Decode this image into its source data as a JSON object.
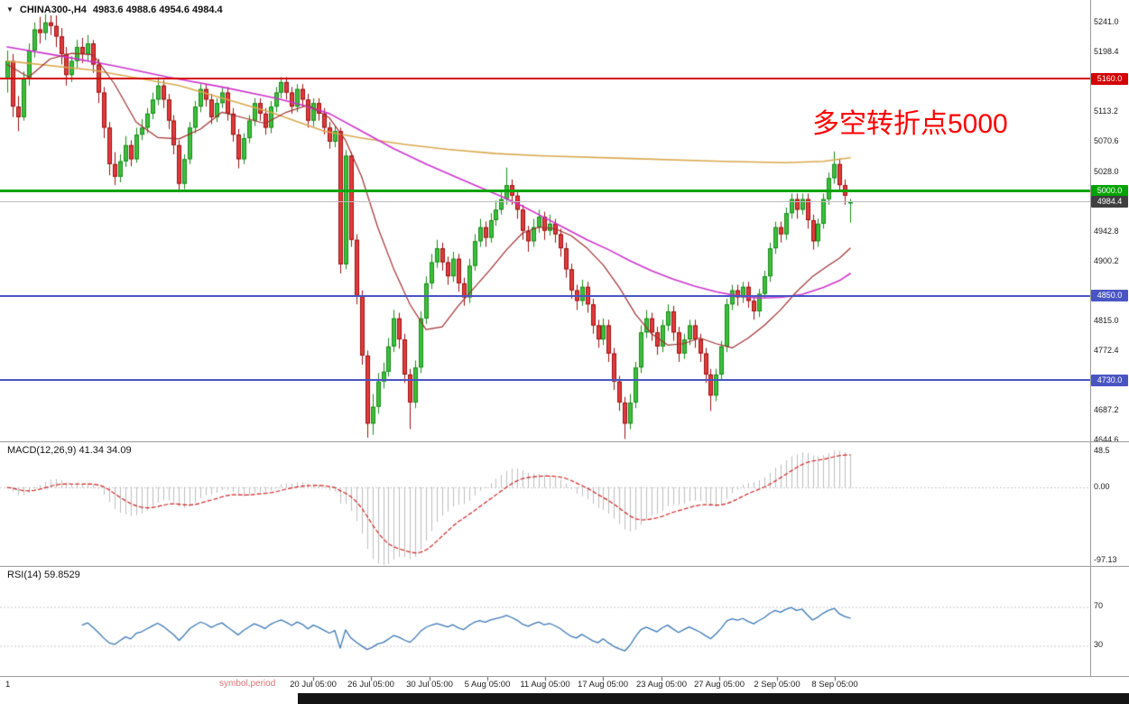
{
  "title": {
    "symbol_period": "CHINA300-,H4",
    "ohlc": "4983.6 4988.6 4954.6 4984.4"
  },
  "annotation": {
    "text": "多空转折点5000",
    "color": "#ff0000"
  },
  "levels": [
    {
      "price": 5160.0,
      "label": "5160.0",
      "color": "#d40000",
      "thickness": 2
    },
    {
      "price": 5000.0,
      "label": "5000.0",
      "color": "#00a400",
      "thickness": 3
    },
    {
      "price": 4850.0,
      "label": "4850.0",
      "color": "#4a55c4",
      "thickness": 2
    },
    {
      "price": 4730.0,
      "label": "4730.0",
      "color": "#4a55c4",
      "thickness": 2
    }
  ],
  "current_price": {
    "value": 4984.4,
    "label": "4984.4",
    "badge_bg": "#3f3f3f",
    "line_color": "#bcbcbc"
  },
  "price_axis": {
    "labels": [
      5241.0,
      5198.4,
      5113.2,
      5070.6,
      5028.0,
      4942.8,
      4900.2,
      4815.0,
      4772.4,
      4687.2,
      4644.6
    ]
  },
  "time_axis": {
    "left_marker": "1",
    "watermark": "symbol,period",
    "labels": [
      "20 Jul 05:00",
      "26 Jul 05:00",
      "30 Jul 05:00",
      "5 Aug 05:00",
      "11 Aug 05:00",
      "17 Aug 05:00",
      "23 Aug 05:00",
      "27 Aug 05:00",
      "2 Sep 05:00",
      "8 Sep 05:00"
    ]
  },
  "macd_panel": {
    "label": "MACD(12,26,9) 41.34 34.09",
    "axis": [
      "48.5",
      "0.00",
      "-97.13"
    ],
    "axis_values": [
      48.5,
      0,
      -97.13
    ],
    "bar_color": "#bdbdbd",
    "signal_color": "#cc2222"
  },
  "rsi_panel": {
    "label": "RSI(14) 59.8529",
    "axis": [
      "70",
      "30"
    ],
    "axis_values": [
      70,
      30
    ],
    "line_color": "#3c78b4"
  },
  "chart_data": {
    "type": "candlestick",
    "symbol": "CHINA300-",
    "timeframe": "H4",
    "title": "CHINA300-,H4",
    "last_ohlc": {
      "open": 4983.6,
      "high": 4988.6,
      "low": 4954.6,
      "close": 4984.4
    },
    "ylim": [
      4644.6,
      5241.0
    ],
    "grid": false,
    "price_levels": [
      5160.0,
      5000.0,
      4850.0,
      4730.0
    ],
    "up_color": "#3cbf3c",
    "up_border": "#1a8a1a",
    "down_color": "#e23b3b",
    "down_border": "#991111",
    "candles": [
      [
        5160,
        5200,
        5140,
        5185
      ],
      [
        5185,
        5195,
        5105,
        5120
      ],
      [
        5120,
        5135,
        5085,
        5105
      ],
      [
        5105,
        5170,
        5100,
        5160
      ],
      [
        5160,
        5210,
        5150,
        5200
      ],
      [
        5200,
        5240,
        5190,
        5230
      ],
      [
        5230,
        5248,
        5210,
        5225
      ],
      [
        5225,
        5252,
        5215,
        5240
      ],
      [
        5240,
        5250,
        5222,
        5235
      ],
      [
        5235,
        5250,
        5205,
        5220
      ],
      [
        5220,
        5232,
        5180,
        5195
      ],
      [
        5195,
        5205,
        5150,
        5165
      ],
      [
        5165,
        5192,
        5155,
        5185
      ],
      [
        5185,
        5215,
        5175,
        5205
      ],
      [
        5205,
        5218,
        5182,
        5195
      ],
      [
        5195,
        5222,
        5185,
        5210
      ],
      [
        5210,
        5215,
        5168,
        5180
      ],
      [
        5180,
        5188,
        5125,
        5140
      ],
      [
        5140,
        5148,
        5075,
        5090
      ],
      [
        5090,
        5098,
        5022,
        5038
      ],
      [
        5038,
        5055,
        5008,
        5020
      ],
      [
        5020,
        5052,
        5012,
        5042
      ],
      [
        5042,
        5078,
        5034,
        5065
      ],
      [
        5065,
        5072,
        5035,
        5045
      ],
      [
        5045,
        5090,
        5040,
        5080
      ],
      [
        5080,
        5102,
        5072,
        5090
      ],
      [
        5090,
        5118,
        5082,
        5110
      ],
      [
        5110,
        5140,
        5102,
        5130
      ],
      [
        5130,
        5162,
        5122,
        5150
      ],
      [
        5150,
        5158,
        5118,
        5130
      ],
      [
        5130,
        5138,
        5088,
        5100
      ],
      [
        5100,
        5108,
        5052,
        5065
      ],
      [
        5065,
        5072,
        4998,
        5010
      ],
      [
        5010,
        5052,
        5002,
        5045
      ],
      [
        5045,
        5098,
        5038,
        5090
      ],
      [
        5090,
        5128,
        5082,
        5120
      ],
      [
        5120,
        5152,
        5112,
        5145
      ],
      [
        5145,
        5152,
        5120,
        5130
      ],
      [
        5130,
        5138,
        5095,
        5105
      ],
      [
        5105,
        5132,
        5098,
        5125
      ],
      [
        5125,
        5148,
        5118,
        5140
      ],
      [
        5140,
        5148,
        5100,
        5110
      ],
      [
        5110,
        5118,
        5070,
        5080
      ],
      [
        5080,
        5088,
        5032,
        5045
      ],
      [
        5045,
        5082,
        5038,
        5075
      ],
      [
        5075,
        5108,
        5068,
        5100
      ],
      [
        5100,
        5132,
        5092,
        5125
      ],
      [
        5125,
        5132,
        5100,
        5110
      ],
      [
        5110,
        5118,
        5080,
        5090
      ],
      [
        5090,
        5128,
        5082,
        5120
      ],
      [
        5120,
        5148,
        5112,
        5140
      ],
      [
        5140,
        5162,
        5132,
        5155
      ],
      [
        5155,
        5162,
        5130,
        5140
      ],
      [
        5140,
        5148,
        5110,
        5120
      ],
      [
        5120,
        5152,
        5112,
        5145
      ],
      [
        5145,
        5152,
        5120,
        5130
      ],
      [
        5130,
        5138,
        5090,
        5100
      ],
      [
        5100,
        5132,
        5092,
        5125
      ],
      [
        5125,
        5132,
        5100,
        5110
      ],
      [
        5110,
        5118,
        5080,
        5090
      ],
      [
        5090,
        5098,
        5060,
        5070
      ],
      [
        5070,
        5092,
        5062,
        5085
      ],
      [
        5085,
        5090,
        4882,
        4895
      ],
      [
        4895,
        5058,
        4888,
        5050
      ],
      [
        5050,
        5055,
        4920,
        4930
      ],
      [
        4930,
        4938,
        4838,
        4850
      ],
      [
        4850,
        4858,
        4752,
        4765
      ],
      [
        4765,
        4772,
        4648,
        4668
      ],
      [
        4668,
        4710,
        4652,
        4692
      ],
      [
        4692,
        4740,
        4682,
        4728
      ],
      [
        4728,
        4755,
        4718,
        4742
      ],
      [
        4742,
        4790,
        4735,
        4778
      ],
      [
        4778,
        4830,
        4770,
        4818
      ],
      [
        4818,
        4826,
        4775,
        4788
      ],
      [
        4788,
        4796,
        4726,
        4738
      ],
      [
        4738,
        4746,
        4660,
        4698
      ],
      [
        4698,
        4758,
        4690,
        4748
      ],
      [
        4748,
        4828,
        4740,
        4818
      ],
      [
        4818,
        4878,
        4810,
        4868
      ],
      [
        4868,
        4910,
        4860,
        4898
      ],
      [
        4898,
        4930,
        4890,
        4918
      ],
      [
        4918,
        4926,
        4886,
        4898
      ],
      [
        4898,
        4906,
        4866,
        4878
      ],
      [
        4878,
        4913,
        4870,
        4903
      ],
      [
        4903,
        4910,
        4856,
        4868
      ],
      [
        4868,
        4876,
        4836,
        4848
      ],
      [
        4848,
        4903,
        4840,
        4893
      ],
      [
        4893,
        4938,
        4886,
        4928
      ],
      [
        4928,
        4960,
        4920,
        4948
      ],
      [
        4948,
        4956,
        4920,
        4933
      ],
      [
        4933,
        4968,
        4926,
        4958
      ],
      [
        4958,
        4986,
        4950,
        4973
      ],
      [
        4973,
        5000,
        4966,
        4988
      ],
      [
        4988,
        5033,
        4980,
        5008
      ],
      [
        5008,
        5016,
        4980,
        4993
      ],
      [
        4993,
        5000,
        4960,
        4973
      ],
      [
        4973,
        4980,
        4930,
        4943
      ],
      [
        4943,
        4950,
        4913,
        4928
      ],
      [
        4928,
        4960,
        4920,
        4948
      ],
      [
        4948,
        4973,
        4940,
        4963
      ],
      [
        4963,
        4970,
        4930,
        4943
      ],
      [
        4943,
        4966,
        4936,
        4953
      ],
      [
        4953,
        4960,
        4926,
        4938
      ],
      [
        4938,
        4946,
        4906,
        4918
      ],
      [
        4918,
        4926,
        4876,
        4888
      ],
      [
        4888,
        4896,
        4846,
        4858
      ],
      [
        4858,
        4866,
        4830,
        4843
      ],
      [
        4843,
        4873,
        4836,
        4863
      ],
      [
        4863,
        4870,
        4826,
        4838
      ],
      [
        4838,
        4846,
        4796,
        4808
      ],
      [
        4808,
        4816,
        4776,
        4788
      ],
      [
        4788,
        4818,
        4780,
        4808
      ],
      [
        4808,
        4816,
        4756,
        4768
      ],
      [
        4768,
        4776,
        4716,
        4728
      ],
      [
        4728,
        4736,
        4686,
        4698
      ],
      [
        4698,
        4706,
        4646,
        4668
      ],
      [
        4668,
        4710,
        4660,
        4698
      ],
      [
        4698,
        4756,
        4690,
        4748
      ],
      [
        4748,
        4808,
        4740,
        4798
      ],
      [
        4798,
        4830,
        4790,
        4818
      ],
      [
        4818,
        4826,
        4786,
        4798
      ],
      [
        4798,
        4806,
        4766,
        4778
      ],
      [
        4778,
        4816,
        4770,
        4808
      ],
      [
        4808,
        4838,
        4800,
        4828
      ],
      [
        4828,
        4836,
        4786,
        4798
      ],
      [
        4798,
        4806,
        4756,
        4768
      ],
      [
        4768,
        4796,
        4760,
        4788
      ],
      [
        4788,
        4816,
        4780,
        4808
      ],
      [
        4808,
        4816,
        4776,
        4788
      ],
      [
        4788,
        4796,
        4756,
        4768
      ],
      [
        4768,
        4776,
        4726,
        4738
      ],
      [
        4738,
        4746,
        4686,
        4708
      ],
      [
        4708,
        4746,
        4700,
        4738
      ],
      [
        4738,
        4786,
        4730,
        4778
      ],
      [
        4778,
        4846,
        4770,
        4838
      ],
      [
        4838,
        4866,
        4830,
        4858
      ],
      [
        4858,
        4866,
        4836,
        4848
      ],
      [
        4848,
        4870,
        4840,
        4863
      ],
      [
        4863,
        4870,
        4833,
        4843
      ],
      [
        4843,
        4850,
        4816,
        4828
      ],
      [
        4828,
        4860,
        4820,
        4853
      ],
      [
        4853,
        4886,
        4846,
        4878
      ],
      [
        4878,
        4926,
        4870,
        4918
      ],
      [
        4918,
        4956,
        4910,
        4948
      ],
      [
        4948,
        4956,
        4926,
        4938
      ],
      [
        4938,
        4976,
        4930,
        4968
      ],
      [
        4968,
        4996,
        4960,
        4988
      ],
      [
        4988,
        4996,
        4960,
        4973
      ],
      [
        4973,
        4996,
        4966,
        4988
      ],
      [
        4988,
        4996,
        4946,
        4958
      ],
      [
        4958,
        4966,
        4916,
        4928
      ],
      [
        4928,
        4960,
        4920,
        4953
      ],
      [
        4953,
        4996,
        4946,
        4988
      ],
      [
        4988,
        5026,
        4980,
        5018
      ],
      [
        5018,
        5056,
        5010,
        5038
      ],
      [
        5038,
        5046,
        5000,
        5008
      ],
      [
        5008,
        5016,
        4980,
        4993
      ],
      [
        4983.6,
        4988.6,
        4954.6,
        4984.4
      ]
    ],
    "overlays": [
      {
        "name": "ma-slow",
        "color": "#d9a84e",
        "width": 1.6,
        "points": [
          [
            0,
            5185
          ],
          [
            16,
            5172
          ],
          [
            32,
            5150
          ],
          [
            49,
            5112
          ],
          [
            59,
            5085
          ],
          [
            66,
            5075
          ],
          [
            74,
            5066
          ],
          [
            82,
            5059
          ],
          [
            91,
            5053
          ],
          [
            99,
            5050
          ],
          [
            116,
            5046
          ],
          [
            133,
            5042
          ],
          [
            145,
            5040
          ],
          [
            152,
            5042
          ],
          [
            157,
            5047
          ]
        ]
      },
      {
        "name": "ma-medium",
        "color": "#cc33cc",
        "width": 1.6,
        "points": [
          [
            0,
            5205
          ],
          [
            10,
            5192
          ],
          [
            20,
            5178
          ],
          [
            30,
            5162
          ],
          [
            40,
            5148
          ],
          [
            50,
            5132
          ],
          [
            55,
            5122
          ],
          [
            60,
            5110
          ],
          [
            66,
            5085
          ],
          [
            72,
            5060
          ],
          [
            78,
            5038
          ],
          [
            84,
            5018
          ],
          [
            88,
            5005
          ],
          [
            92,
            4992
          ],
          [
            96,
            4978
          ],
          [
            100,
            4962
          ],
          [
            104,
            4946
          ],
          [
            108,
            4930
          ],
          [
            112,
            4916
          ],
          [
            116,
            4900
          ],
          [
            120,
            4886
          ],
          [
            124,
            4874
          ],
          [
            128,
            4864
          ],
          [
            132,
            4856
          ],
          [
            136,
            4850
          ],
          [
            140,
            4847
          ],
          [
            144,
            4848
          ],
          [
            148,
            4852
          ],
          [
            152,
            4862
          ],
          [
            155,
            4872
          ],
          [
            157,
            4882
          ]
        ]
      },
      {
        "name": "ma-fast",
        "color": "#a03030",
        "width": 1.2,
        "points": [
          [
            0,
            5180
          ],
          [
            4,
            5162
          ],
          [
            8,
            5188
          ],
          [
            12,
            5196
          ],
          [
            16,
            5194
          ],
          [
            20,
            5152
          ],
          [
            24,
            5098
          ],
          [
            28,
            5076
          ],
          [
            32,
            5074
          ],
          [
            36,
            5088
          ],
          [
            40,
            5112
          ],
          [
            44,
            5104
          ],
          [
            48,
            5096
          ],
          [
            52,
            5112
          ],
          [
            56,
            5122
          ],
          [
            60,
            5104
          ],
          [
            63,
            5072
          ],
          [
            66,
            5020
          ],
          [
            69,
            4948
          ],
          [
            72,
            4888
          ],
          [
            75,
            4838
          ],
          [
            78,
            4802
          ],
          [
            81,
            4806
          ],
          [
            84,
            4836
          ],
          [
            87,
            4862
          ],
          [
            90,
            4888
          ],
          [
            93,
            4916
          ],
          [
            96,
            4940
          ],
          [
            99,
            4948
          ],
          [
            102,
            4946
          ],
          [
            105,
            4936
          ],
          [
            108,
            4918
          ],
          [
            111,
            4894
          ],
          [
            114,
            4862
          ],
          [
            117,
            4824
          ],
          [
            120,
            4796
          ],
          [
            123,
            4780
          ],
          [
            126,
            4782
          ],
          [
            129,
            4790
          ],
          [
            132,
            4782
          ],
          [
            135,
            4776
          ],
          [
            138,
            4790
          ],
          [
            141,
            4808
          ],
          [
            144,
            4830
          ],
          [
            147,
            4856
          ],
          [
            150,
            4878
          ],
          [
            153,
            4894
          ],
          [
            155,
            4904
          ],
          [
            157,
            4918
          ]
        ]
      }
    ],
    "indicators": [
      {
        "name": "MACD",
        "params": [
          12,
          26,
          9
        ],
        "display_values": [
          41.34,
          34.09
        ],
        "scale_max": 48.5,
        "scale_min": -97.13
      },
      {
        "name": "RSI",
        "params": [
          14
        ],
        "display_value": 59.8529,
        "guide_levels": [
          70,
          30
        ]
      }
    ]
  }
}
